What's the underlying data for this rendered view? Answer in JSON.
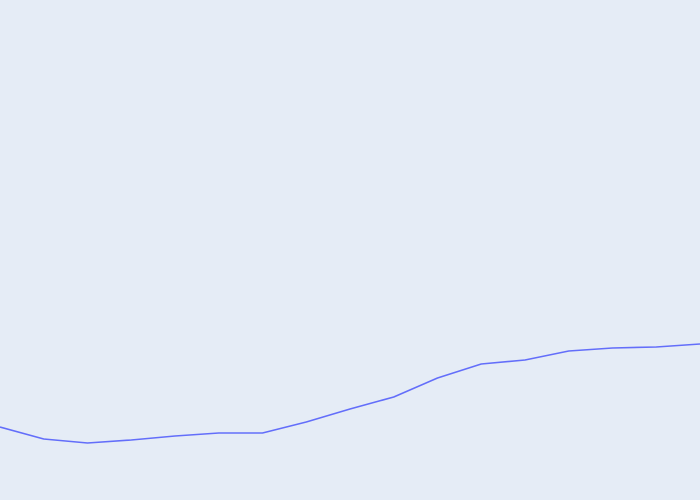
{
  "chart_data": {
    "type": "line",
    "background_color": "#e5ecf6",
    "line_color": "#636efa",
    "grid": false,
    "legend": false,
    "ylim": [
      0,
      100
    ],
    "xlim": [
      0,
      16
    ],
    "series": [
      {
        "x": [
          0,
          1,
          2,
          3,
          4,
          5,
          6,
          7,
          8,
          9,
          10,
          11,
          12,
          13,
          14,
          15,
          16
        ],
        "values": [
          14.6,
          12.2,
          11.4,
          12.0,
          12.8,
          13.4,
          13.4,
          15.6,
          18.2,
          20.6,
          24.4,
          27.2,
          28.0,
          29.8,
          30.4,
          30.6,
          31.2
        ]
      }
    ]
  }
}
